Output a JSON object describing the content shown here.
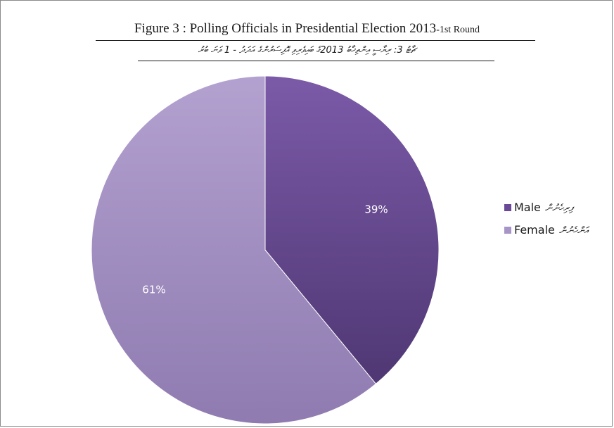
{
  "figure": {
    "title_en": "Figure 3 : Polling Officials in Presidential Election 2013",
    "title_en_suffix": "-1st Round",
    "title_dv": "ޗާޓު 3: ރިޔާސީ އިންތިޚާބު 2013ގެ ބައިވެރިވި އޮފިސަރުންގެ އަދަދު - 1 ވަނަ ބުރު"
  },
  "chart_data": {
    "type": "pie",
    "title": "Figure 3 : Polling Officials in Presidential Election 2013-1st Round",
    "categories": [
      "Male",
      "Female"
    ],
    "categories_dv": [
      "ފިރިހެނުން",
      "އަންހެނުން"
    ],
    "values": [
      39,
      61
    ],
    "value_labels": [
      "39%",
      "61%"
    ],
    "colors": [
      "#6a4a96",
      "#a895c7"
    ],
    "legend_position": "right",
    "start_angle": "12 o'clock",
    "direction": "clockwise"
  }
}
